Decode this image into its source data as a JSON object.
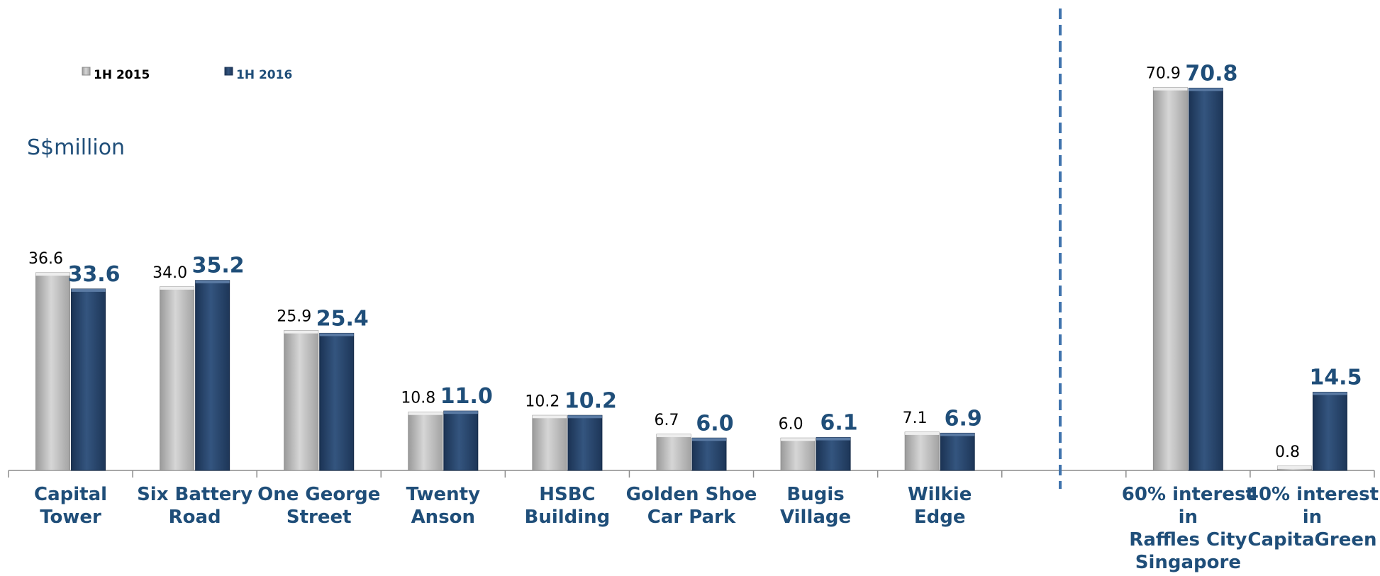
{
  "unit_label": "S$million",
  "chart_data": {
    "type": "bar",
    "title": "",
    "xlabel": "",
    "ylabel": "S$million",
    "ylim": [
      0,
      80
    ],
    "grid": false,
    "legend_position": "top-left",
    "categories": [
      [
        "Capital",
        "Tower"
      ],
      [
        "Six Battery",
        "Road"
      ],
      [
        "One George",
        "Street"
      ],
      [
        "Twenty",
        "Anson"
      ],
      [
        "HSBC",
        "Building"
      ],
      [
        "Golden Shoe",
        "Car Park"
      ],
      [
        "Bugis",
        "Village"
      ],
      [
        "Wilkie",
        "Edge"
      ],
      [],
      [
        "60% interest",
        "in",
        "Raffles City",
        "Singapore"
      ],
      [
        "40% interest",
        "in",
        "CapitaGreen"
      ]
    ],
    "series": [
      {
        "name": "1H 2015",
        "values": [
          36.6,
          34.0,
          25.9,
          10.8,
          10.2,
          6.7,
          6.0,
          7.1,
          null,
          70.9,
          0.8
        ],
        "labels": [
          "36.6",
          "34.0",
          "25.9",
          "10.8",
          "10.2",
          "6.7",
          "6.0",
          "7.1",
          "",
          "70.9",
          "0.8"
        ],
        "color": "#b7b7b7"
      },
      {
        "name": "1H 2016",
        "values": [
          33.6,
          35.2,
          25.4,
          11.0,
          10.2,
          6.0,
          6.1,
          6.9,
          null,
          70.8,
          14.5
        ],
        "labels": [
          "33.6",
          "35.2",
          "25.4",
          "11.0",
          "10.2",
          "6.0",
          "6.1",
          "6.9",
          "",
          "70.8",
          "14.5"
        ],
        "color": "#2b4b74"
      }
    ],
    "divider": {
      "style": "dashed",
      "color": "#3f73ad"
    }
  }
}
